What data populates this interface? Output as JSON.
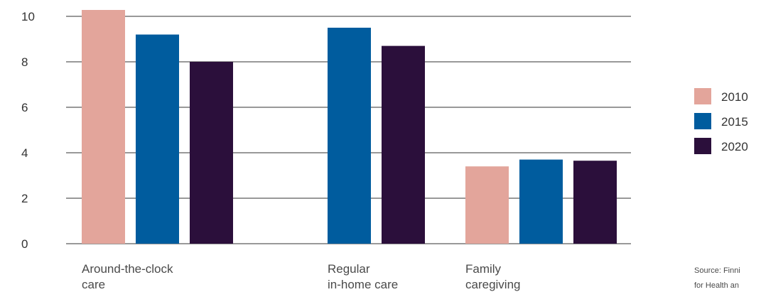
{
  "chart_data": {
    "type": "bar",
    "categories": [
      [
        "Around-the-clock",
        "care"
      ],
      [
        "Regular",
        "in-home care"
      ],
      [
        "Family",
        "caregiving"
      ]
    ],
    "series": [
      {
        "name": "2010",
        "color": "#e3a59b",
        "values": [
          10.3,
          null,
          3.4
        ]
      },
      {
        "name": "2015",
        "color": "#005c9e",
        "values": [
          9.2,
          9.5,
          3.7
        ]
      },
      {
        "name": "2020",
        "color": "#2b0f3b",
        "values": [
          8.0,
          8.7,
          3.65
        ]
      }
    ],
    "ylim": [
      0,
      10
    ],
    "yticks": [
      "0",
      "2",
      "4",
      "6",
      "8",
      "10"
    ],
    "ytick_values": [
      0,
      2,
      4,
      6,
      8,
      10
    ],
    "grid": true,
    "legend_position": "right",
    "title": "",
    "xlabel": "",
    "ylabel": "",
    "source": [
      "Source: Finni",
      "for Health an"
    ]
  }
}
